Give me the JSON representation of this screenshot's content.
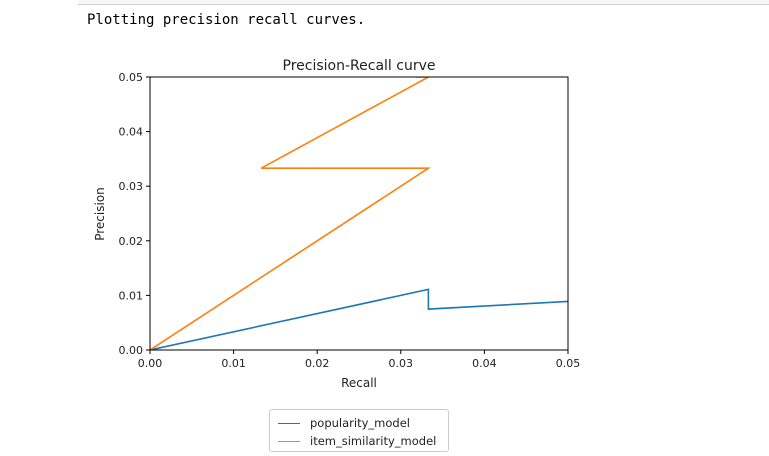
{
  "output": {
    "text": "Plotting precision recall curves."
  },
  "chart_data": {
    "type": "line",
    "title": "Precision-Recall curve",
    "xlabel": "Recall",
    "ylabel": "Precision",
    "xlim": [
      0.0,
      0.05
    ],
    "ylim": [
      0.0,
      0.05
    ],
    "xticks": [
      "0.00",
      "0.01",
      "0.02",
      "0.03",
      "0.04",
      "0.05"
    ],
    "yticks": [
      "0.00",
      "0.01",
      "0.02",
      "0.03",
      "0.04",
      "0.05"
    ],
    "grid": false,
    "legend_position": "bottom-center-outside",
    "series": [
      {
        "name": "popularity_model",
        "color": "#1f77b4",
        "x": [
          0.0,
          0.0333,
          0.0333,
          0.05
        ],
        "y": [
          0.0,
          0.0111,
          0.0075,
          0.0089
        ]
      },
      {
        "name": "item_similarity_model",
        "color": "#ff7f0e",
        "x": [
          0.0,
          0.0333,
          0.0133,
          0.0333,
          0.0318
        ],
        "y": [
          0.0,
          0.0333,
          0.0333,
          0.05,
          0.05
        ]
      }
    ]
  }
}
